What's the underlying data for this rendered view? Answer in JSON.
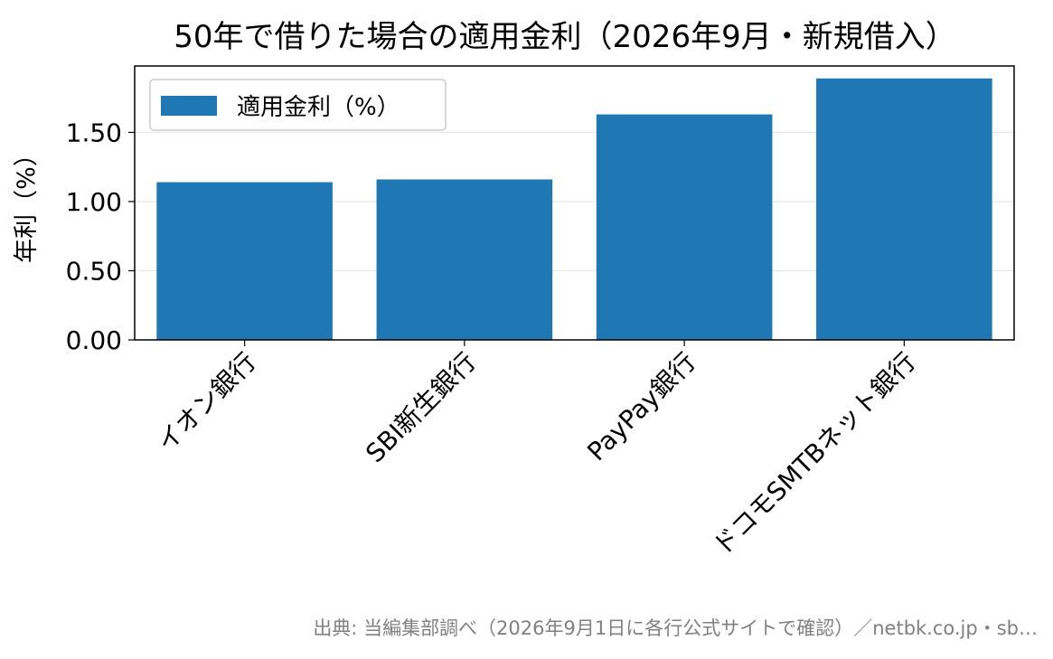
{
  "chart_data": {
    "type": "bar",
    "title": "50年で借りた場合の適用金利（2026年9月・新規借入）",
    "xlabel": "",
    "ylabel": "年利（%）",
    "categories": [
      "イオン銀行",
      "SBI新生銀行",
      "PayPay銀行",
      "ドコモSMTBネット銀行"
    ],
    "series": [
      {
        "name": "適用金利（%）",
        "values": [
          1.14,
          1.16,
          1.63,
          1.89
        ]
      }
    ],
    "ylim": [
      0,
      1.98
    ],
    "yticks": [
      "0.00",
      "0.50",
      "1.00",
      "1.50"
    ],
    "ytick_values": [
      0,
      0.5,
      1.0,
      1.5
    ],
    "grid": "horizontal",
    "legend_position": "top-left",
    "bar_color": "#1f77b4",
    "source_note": "出典: 当編集部調べ（2026年9月1日に各行公式サイトで確認）／netbk.co.jp・sb…"
  }
}
